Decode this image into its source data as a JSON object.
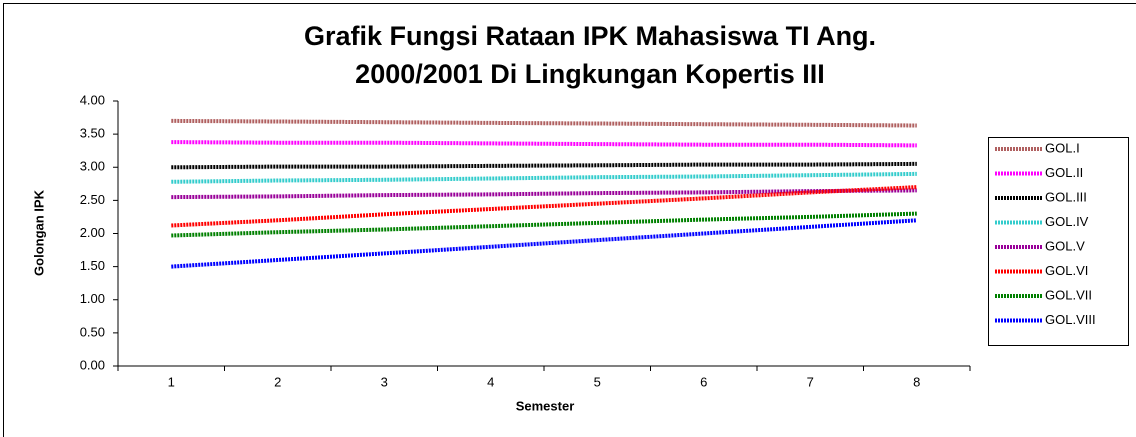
{
  "chart_data": {
    "type": "line",
    "title": [
      "Grafik Fungsi Rataan IPK Mahasiswa TI Ang.",
      "2000/2001 Di Lingkungan Kopertis III"
    ],
    "x_label": "Semester",
    "y_label": "Golongan IPK",
    "categories": [
      "1",
      "2",
      "3",
      "4",
      "5",
      "6",
      "7",
      "8"
    ],
    "ylim": [
      0,
      4
    ],
    "yticks": [
      {
        "value": 0,
        "label": "0.00"
      },
      {
        "value": 0.5,
        "label": "0.50"
      },
      {
        "value": 1,
        "label": "1.00"
      },
      {
        "value": 1.5,
        "label": "1.50"
      },
      {
        "value": 2,
        "label": "2.00"
      },
      {
        "value": 2.5,
        "label": "2.50"
      },
      {
        "value": 3,
        "label": "3.00"
      },
      {
        "value": 3.5,
        "label": "3.50"
      },
      {
        "value": 4,
        "label": "4.00"
      }
    ],
    "grid": false,
    "legend": "right",
    "series": [
      {
        "name": "GOL.I",
        "color": "#b06060",
        "values": [
          3.7,
          3.69,
          3.68,
          3.67,
          3.66,
          3.65,
          3.64,
          3.63
        ]
      },
      {
        "name": "GOL.II",
        "color": "#ff00ff",
        "values": [
          3.38,
          3.37,
          3.37,
          3.36,
          3.35,
          3.34,
          3.34,
          3.33
        ]
      },
      {
        "name": "GOL.III",
        "color": "#000000",
        "values": [
          3.0,
          3.01,
          3.01,
          3.02,
          3.03,
          3.04,
          3.04,
          3.05
        ]
      },
      {
        "name": "GOL.IV",
        "color": "#33cccc",
        "values": [
          2.78,
          2.8,
          2.81,
          2.83,
          2.85,
          2.86,
          2.88,
          2.9
        ]
      },
      {
        "name": "GOL.V",
        "color": "#990099",
        "values": [
          2.55,
          2.56,
          2.58,
          2.59,
          2.61,
          2.62,
          2.64,
          2.65
        ]
      },
      {
        "name": "GOL.VI",
        "color": "#ff0000",
        "values": [
          2.12,
          2.2,
          2.29,
          2.37,
          2.45,
          2.53,
          2.62,
          2.7
        ]
      },
      {
        "name": "GOL.VII",
        "color": "#008000",
        "values": [
          1.97,
          2.02,
          2.06,
          2.11,
          2.16,
          2.21,
          2.25,
          2.3
        ]
      },
      {
        "name": "GOL.VIII",
        "color": "#0000ff",
        "values": [
          1.5,
          1.6,
          1.7,
          1.8,
          1.9,
          2.0,
          2.1,
          2.2
        ]
      }
    ]
  }
}
